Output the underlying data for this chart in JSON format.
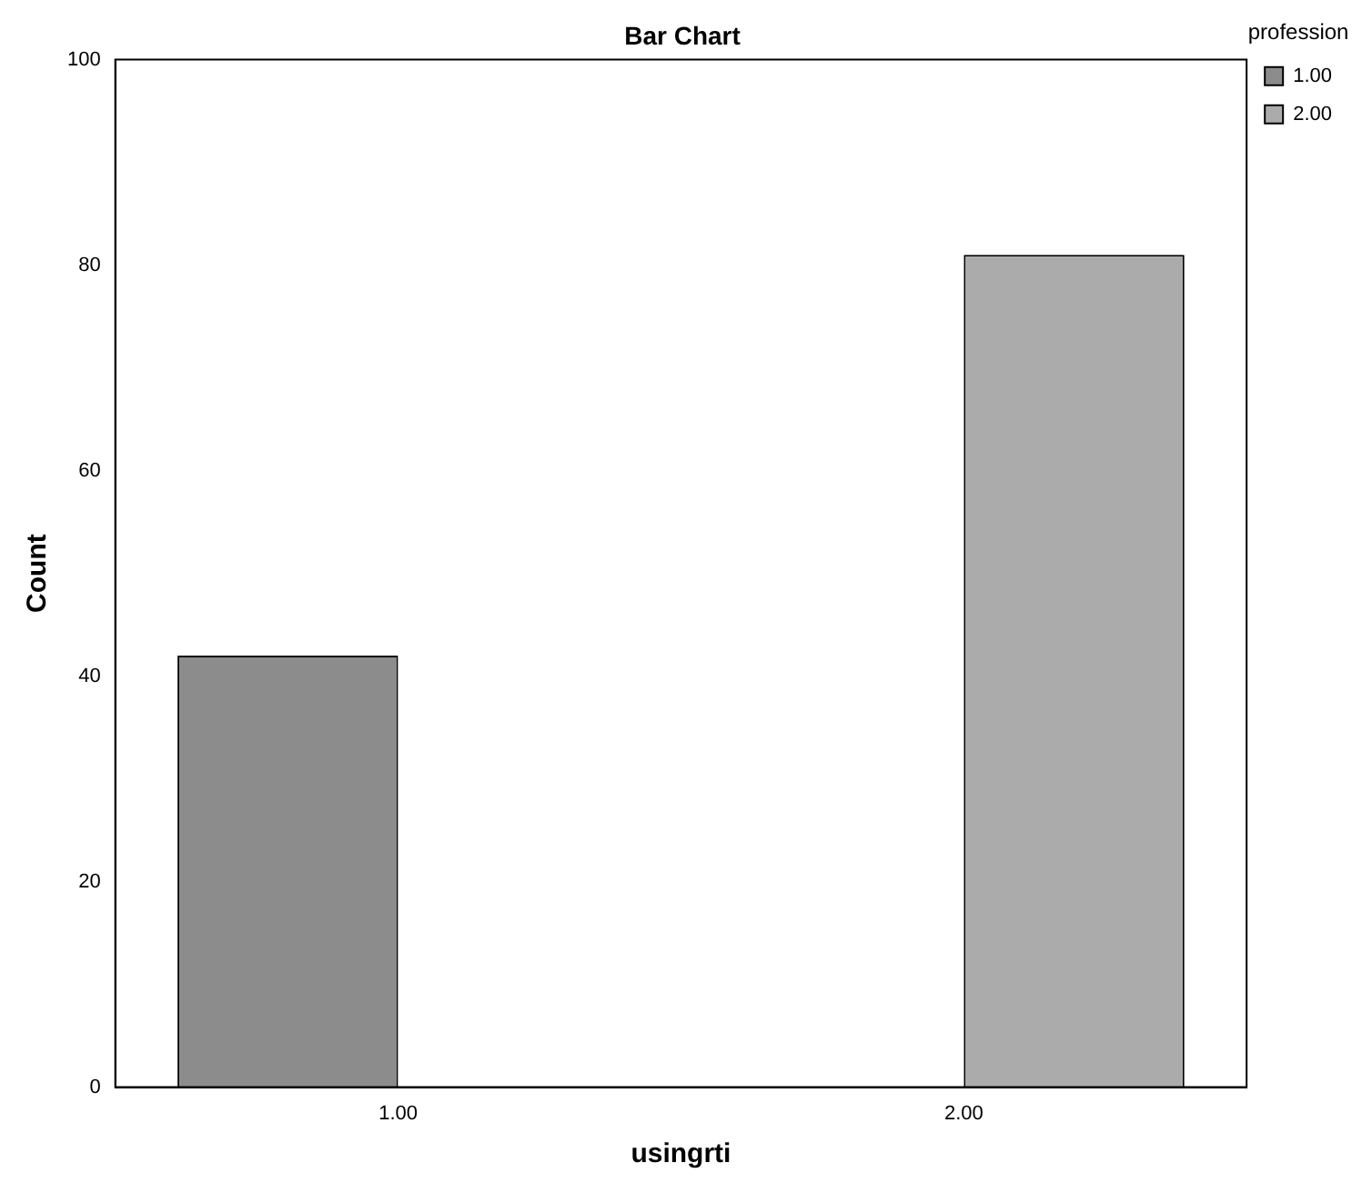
{
  "chart_data": {
    "type": "bar",
    "title": "Bar Chart",
    "xlabel": "usingrti",
    "ylabel": "Count",
    "legend_title": "profession",
    "categories": [
      "1.00",
      "2.00"
    ],
    "series": [
      {
        "name": "1.00",
        "color": "#8c8c8c",
        "values": [
          42,
          null
        ]
      },
      {
        "name": "2.00",
        "color": "#ababab",
        "values": [
          null,
          81
        ]
      }
    ],
    "ylim": [
      0,
      100
    ],
    "yticks": [
      0,
      20,
      40,
      60,
      80,
      100
    ],
    "grid": false,
    "legend": "top right"
  }
}
